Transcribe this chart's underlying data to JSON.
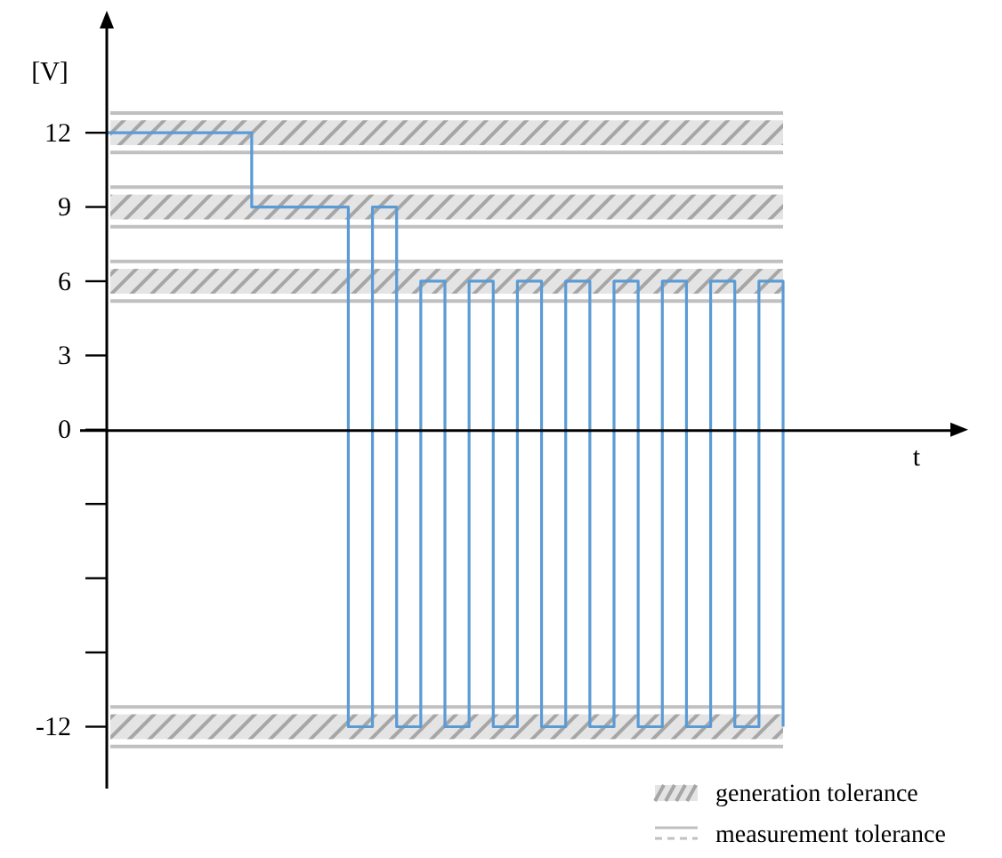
{
  "chart_data": {
    "type": "step",
    "ylabel": "[V]",
    "xlabel": "t",
    "categories": [
      null,
      null,
      null,
      null,
      null,
      null,
      null,
      null,
      null,
      null,
      null,
      null,
      null,
      null,
      null,
      null,
      null,
      null,
      null,
      null,
      null,
      null,
      null,
      null,
      null,
      null,
      null,
      null,
      null
    ],
    "series": [
      {
        "color": "#5b9bd5",
        "values": [
          12,
          12,
          12,
          12,
          12,
          12,
          9,
          9,
          9,
          9,
          -12,
          9,
          -12,
          6,
          -12,
          6,
          -12,
          6,
          -12,
          6,
          -12,
          6,
          -12,
          6,
          -12,
          6,
          -12,
          6,
          -12
        ]
      }
    ],
    "ylim": [
      -14.5,
      16.5
    ],
    "yticks": [
      12,
      9,
      6,
      3,
      0,
      {
        "value": -3,
        "label": null
      },
      {
        "value": -6,
        "label": null
      },
      {
        "value": -9,
        "label": null
      },
      -12
    ],
    "tick_labels": "y",
    "legend": "bottom right",
    "bands": [
      {
        "axis": "y",
        "from": 11.5,
        "to": 12.5,
        "color": "#a6a6a6",
        "label": "generation tolerance"
      },
      {
        "axis": "y",
        "from": 8.5,
        "to": 9.5,
        "color": "#a6a6a6"
      },
      {
        "axis": "y",
        "from": 5.5,
        "to": 6.5,
        "color": "#a6a6a6"
      },
      {
        "axis": "y",
        "from": -12.5,
        "to": -11.5,
        "color": "#a6a6a6"
      }
    ],
    "ref_lines": [
      {
        "axis": "y",
        "value": 12.8,
        "color": "#c0c0c0",
        "label": "measurement tolerance"
      },
      {
        "axis": "y",
        "value": 11.2,
        "color": "#c0c0c0"
      },
      {
        "axis": "y",
        "value": 9.8,
        "color": "#c0c0c0"
      },
      {
        "axis": "y",
        "value": 8.2,
        "color": "#c0c0c0"
      },
      {
        "axis": "y",
        "value": 6.8,
        "color": "#c0c0c0"
      },
      {
        "axis": "y",
        "value": 5.2,
        "color": "#c0c0c0"
      },
      {
        "axis": "y",
        "value": -11.2,
        "color": "#c0c0c0"
      },
      {
        "axis": "y",
        "value": -12.8,
        "color": "#c0c0c0"
      }
    ]
  }
}
